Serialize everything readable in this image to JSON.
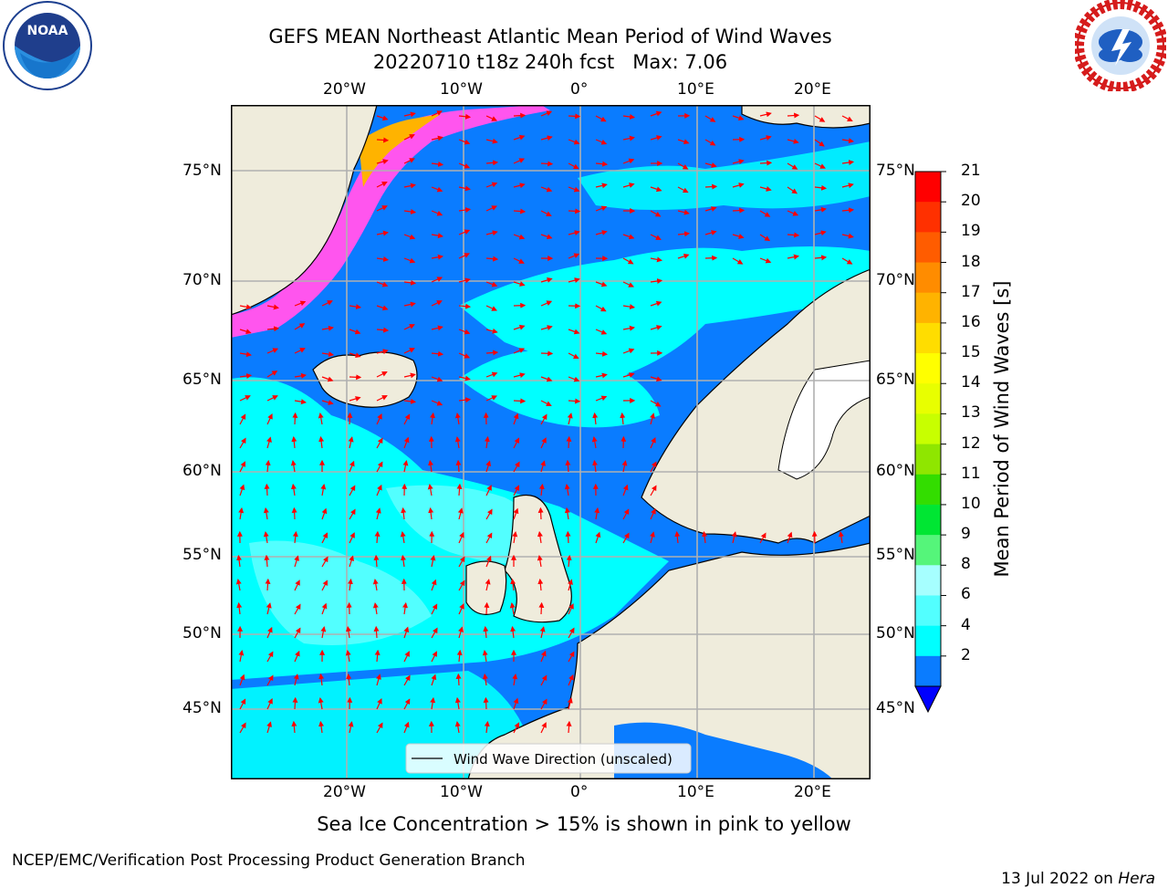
{
  "header": {
    "title_line1": "GEFS MEAN Northeast Atlantic Mean Period of Wind Waves",
    "title_line2": "20220710 t18z 240h fcst   Max: 7.06"
  },
  "logos": {
    "left": "noaa-logo",
    "right": "national-weather-service-logo",
    "noaa_text": "NOAA"
  },
  "map": {
    "lon_labels": [
      "20°W",
      "10°W",
      "0°",
      "10°E",
      "20°E"
    ],
    "lat_labels": [
      "75°N",
      "70°N",
      "65°N",
      "60°N",
      "55°N",
      "50°N",
      "45°N"
    ],
    "legend_label": "Wind Wave Direction (unscaled)",
    "colors": {
      "land": "#efecdc",
      "ocean_2_4": "#0a7cff",
      "ocean_4_6": "#00ffff",
      "ocean_6_8": "#52ffff",
      "ice": "#ff55ee",
      "arrow": "#ff0000"
    }
  },
  "colorbar": {
    "title": "Mean Period of Wind Waves [s]",
    "ticks": [
      "21",
      "20",
      "19",
      "18",
      "17",
      "16",
      "15",
      "14",
      "13",
      "12",
      "11",
      "10",
      "9",
      "8",
      "6",
      "4",
      "2"
    ],
    "colors": [
      "#ff0000",
      "#ff3000",
      "#ff5c00",
      "#ff8c00",
      "#ffb300",
      "#ffdd00",
      "#ffff00",
      "#e8ff00",
      "#c8ff00",
      "#8fe600",
      "#33dd00",
      "#00e633",
      "#55f57a",
      "#a6ffff",
      "#52ffff",
      "#00ffff",
      "#0a7cff"
    ],
    "under_color": "#0000ff"
  },
  "footer": {
    "caption": "Sea Ice Concentration > 15% is shown in pink to yellow",
    "left": "NCEP/EMC/Verification Post Processing Product Generation Branch",
    "right_date": "13 Jul 2022 on ",
    "right_host": "Hera"
  }
}
